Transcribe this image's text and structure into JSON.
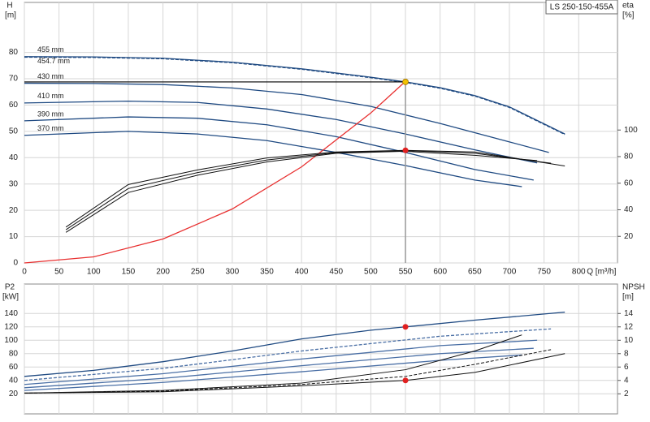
{
  "chart_data": [
    {
      "type": "line",
      "title": "LS 250-150-455A",
      "y_label": "H",
      "y_unit": "[m]",
      "y2_label": "eta",
      "y2_unit": "[%]",
      "x_label": "Q [m³/h]",
      "xlim": [
        0,
        856
      ],
      "ylim": [
        0,
        99
      ],
      "y2lim": [
        0,
        196
      ],
      "xticks": [
        0,
        50,
        100,
        150,
        200,
        250,
        300,
        350,
        400,
        450,
        500,
        550,
        600,
        650,
        700,
        750,
        800
      ],
      "yticks": [
        0,
        10,
        20,
        30,
        40,
        50,
        60,
        70,
        80
      ],
      "y2ticks": [
        20,
        40,
        60,
        80,
        100
      ],
      "grid": true,
      "show_x_tick_labels": true,
      "series": [
        {
          "name": "455 mm",
          "color": "#1f4a82",
          "x": [
            0,
            100,
            200,
            300,
            400,
            500,
            550,
            600,
            650,
            700,
            780
          ],
          "values": [
            78.4,
            78.3,
            77.8,
            76.3,
            73.8,
            70.6,
            68.8,
            66.6,
            63.6,
            59.3,
            49
          ]
        },
        {
          "name": "454.7 mm",
          "color": "#1f4a82",
          "dashed": true,
          "x": [
            0,
            100,
            200,
            300,
            400,
            500,
            550,
            600,
            650,
            700,
            780
          ],
          "values": [
            78.2,
            78.1,
            77.6,
            76.1,
            73.6,
            70.4,
            68.6,
            66.4,
            63.4,
            59.1,
            48.8
          ]
        },
        {
          "name": "430 mm",
          "color": "#1f4a82",
          "x": [
            0,
            100,
            200,
            300,
            400,
            500,
            600,
            700,
            757
          ],
          "values": [
            68.3,
            68.2,
            67.8,
            66.5,
            64,
            59.5,
            53,
            46,
            42
          ]
        },
        {
          "name": "410 mm",
          "color": "#1f4a82",
          "x": [
            0,
            150,
            250,
            350,
            450,
            550,
            650,
            740
          ],
          "values": [
            60.8,
            61.5,
            61,
            58.5,
            54.5,
            49,
            43,
            38
          ]
        },
        {
          "name": "390 mm",
          "color": "#1f4a82",
          "x": [
            0,
            150,
            250,
            350,
            450,
            550,
            650,
            735
          ],
          "values": [
            54,
            55.5,
            55,
            52.5,
            48,
            42,
            35.5,
            31.5
          ]
        },
        {
          "name": "370 mm",
          "color": "#1f4a82",
          "x": [
            0,
            150,
            250,
            350,
            450,
            550,
            650,
            718
          ],
          "values": [
            48.5,
            50,
            49,
            46.5,
            42,
            37,
            31.5,
            29
          ]
        },
        {
          "color": "#e83030",
          "x": [
            0,
            100,
            200,
            300,
            400,
            500,
            550
          ],
          "values": [
            0,
            2.3,
            9.1,
            20.5,
            36.5,
            57,
            69
          ]
        },
        {
          "color": "#111111",
          "axis": "y2",
          "x": [
            60,
            150,
            250,
            350,
            450,
            550,
            650,
            780
          ],
          "values": [
            27,
            59,
            70,
            79,
            83.5,
            84.7,
            83.5,
            73
          ]
        },
        {
          "color": "#111111",
          "axis": "y2",
          "x": [
            60,
            150,
            250,
            350,
            450,
            550,
            650,
            760
          ],
          "values": [
            25,
            56,
            68,
            77.5,
            83,
            84.5,
            82.5,
            75
          ]
        },
        {
          "color": "#111111",
          "axis": "y2",
          "x": [
            60,
            150,
            250,
            350,
            450,
            550,
            650,
            740
          ],
          "values": [
            23,
            53,
            66,
            76,
            82.5,
            84,
            81,
            77
          ]
        }
      ],
      "points": [
        {
          "x": 550,
          "y": 68.8,
          "color": "#f2c200",
          "guides": true
        },
        {
          "x": 550,
          "y": 84.7,
          "axis": "y2",
          "color": "#e02020"
        }
      ]
    },
    {
      "type": "line",
      "y_label": "P2",
      "y_unit": "[kW]",
      "y2_label": "NPSH",
      "y2_unit": "[m]",
      "xlim": [
        0,
        856
      ],
      "ylim": [
        -10,
        184
      ],
      "y2lim": [
        -1,
        18.4
      ],
      "xticks": [
        0,
        50,
        100,
        150,
        200,
        250,
        300,
        350,
        400,
        450,
        500,
        550,
        600,
        650,
        700,
        750,
        800
      ],
      "yticks": [
        20,
        40,
        60,
        80,
        100,
        120,
        140
      ],
      "y2ticks": [
        2,
        4,
        6,
        8,
        10,
        12,
        14
      ],
      "grid": true,
      "show_x_tick_labels": false,
      "series": [
        {
          "color": "#1f4a82",
          "x": [
            0,
            100,
            200,
            300,
            400,
            500,
            550,
            650,
            780
          ],
          "values": [
            46,
            55,
            68,
            84,
            102,
            115,
            120,
            130,
            142
          ]
        },
        {
          "color": "#4a6fa5",
          "dashed": true,
          "x": [
            0,
            200,
            400,
            600,
            760
          ],
          "values": [
            40,
            58,
            84,
            106,
            117
          ]
        },
        {
          "color": "#4a6fa5",
          "x": [
            0,
            200,
            400,
            600,
            740
          ],
          "values": [
            34,
            50,
            72,
            92,
            100
          ]
        },
        {
          "color": "#4a6fa5",
          "x": [
            0,
            200,
            400,
            600,
            735
          ],
          "values": [
            29,
            43,
            62,
            80,
            88
          ]
        },
        {
          "color": "#4a6fa5",
          "x": [
            0,
            200,
            400,
            600,
            718
          ],
          "values": [
            25,
            37,
            53,
            70,
            78
          ]
        },
        {
          "color": "#111111",
          "axis": "y2",
          "x": [
            0,
            200,
            400,
            550,
            650,
            780
          ],
          "values": [
            2.1,
            2.3,
            3.2,
            4,
            5.2,
            8
          ]
        },
        {
          "color": "#111111",
          "axis": "y2",
          "dashed": true,
          "x": [
            0,
            200,
            400,
            550,
            650,
            760
          ],
          "values": [
            2.1,
            2.4,
            3.4,
            4.6,
            6.4,
            8.6
          ]
        },
        {
          "color": "#111111",
          "axis": "y2",
          "x": [
            0,
            200,
            400,
            550,
            650,
            718
          ],
          "values": [
            2.1,
            2.5,
            3.6,
            5.6,
            8.4,
            10.8
          ]
        }
      ],
      "points": [
        {
          "x": 550,
          "y": 120,
          "color": "#e02020"
        },
        {
          "x": 550,
          "y": 4,
          "axis": "y2",
          "color": "#e02020"
        }
      ]
    }
  ]
}
